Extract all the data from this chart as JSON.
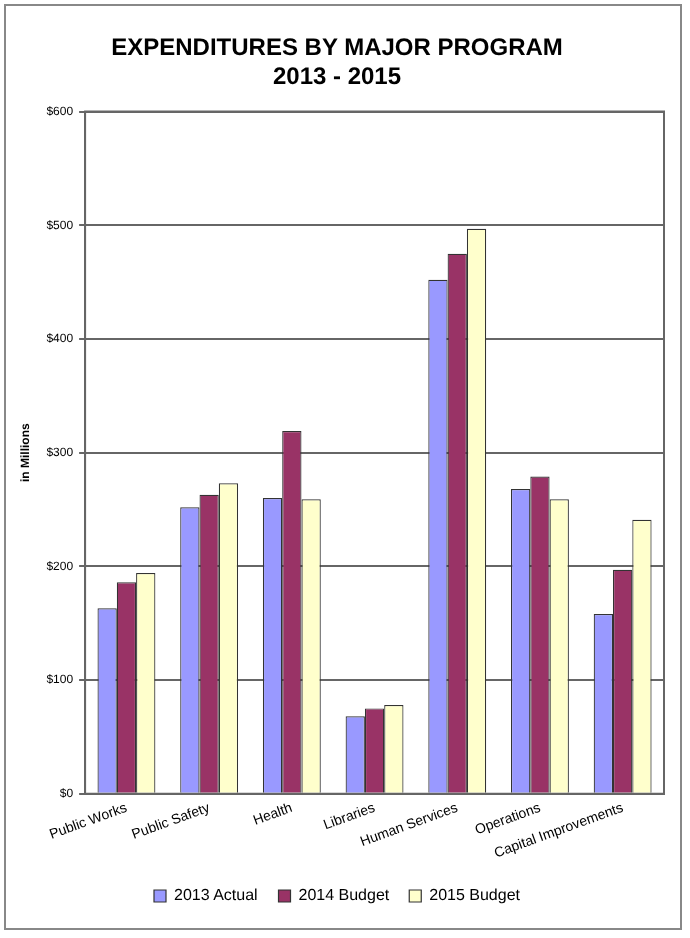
{
  "chart_data": {
    "type": "bar",
    "title": "EXPENDITURES BY MAJOR PROGRAM",
    "subtitle": "2013 - 2015",
    "ylabel": "in Millions",
    "categories": [
      "Public Works",
      "Public Safety",
      "Health",
      "Libraries",
      "Human Services",
      "Operations",
      "Capital Improvements"
    ],
    "series": [
      {
        "name": "2013 Actual",
        "color": "#9999ff",
        "values": [
          163,
          252,
          260,
          68,
          452,
          268,
          158
        ]
      },
      {
        "name": "2014 Budget",
        "color": "#993366",
        "values": [
          186,
          263,
          319,
          75,
          475,
          279,
          197
        ]
      },
      {
        "name": "2015 Budget",
        "color": "#ffffcc",
        "values": [
          194,
          273,
          259,
          78,
          497,
          259,
          241
        ]
      }
    ],
    "ylim": [
      0,
      600
    ],
    "yticks": [
      {
        "value": 0,
        "label": "$0"
      },
      {
        "value": 100,
        "label": "$100"
      },
      {
        "value": 200,
        "label": "$200"
      },
      {
        "value": 300,
        "label": "$300"
      },
      {
        "value": 400,
        "label": "$400"
      },
      {
        "value": 500,
        "label": "$500"
      },
      {
        "value": 600,
        "label": "$600"
      }
    ],
    "grid": "y",
    "legend": "bottom"
  }
}
